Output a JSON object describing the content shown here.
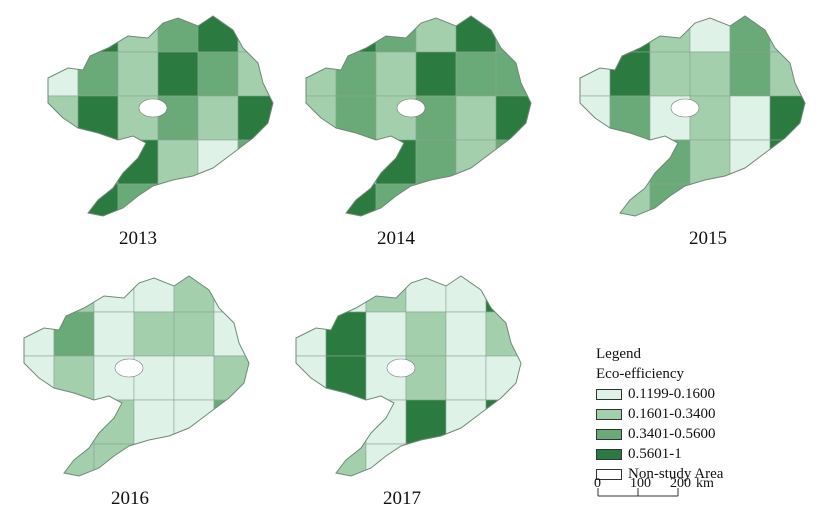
{
  "maps": [
    {
      "year": "2013"
    },
    {
      "year": "2014"
    },
    {
      "year": "2015"
    },
    {
      "year": "2016"
    },
    {
      "year": "2017"
    }
  ],
  "legend": {
    "title": "Legend",
    "subtitle": "Eco-efficiency",
    "classes": [
      {
        "label": "0.1199-0.1600",
        "color": "#dff2e7"
      },
      {
        "label": "0.1601-0.3400",
        "color": "#a3cfad"
      },
      {
        "label": "0.3401-0.5600",
        "color": "#6aa978"
      },
      {
        "label": "0.5601-1",
        "color": "#2b7a3f"
      },
      {
        "label": "Non-study Area",
        "color": "#ffffff"
      }
    ]
  },
  "scale_bar": {
    "tick_0": "0",
    "tick_1": "100",
    "tick_2": "200",
    "unit": "km"
  }
}
